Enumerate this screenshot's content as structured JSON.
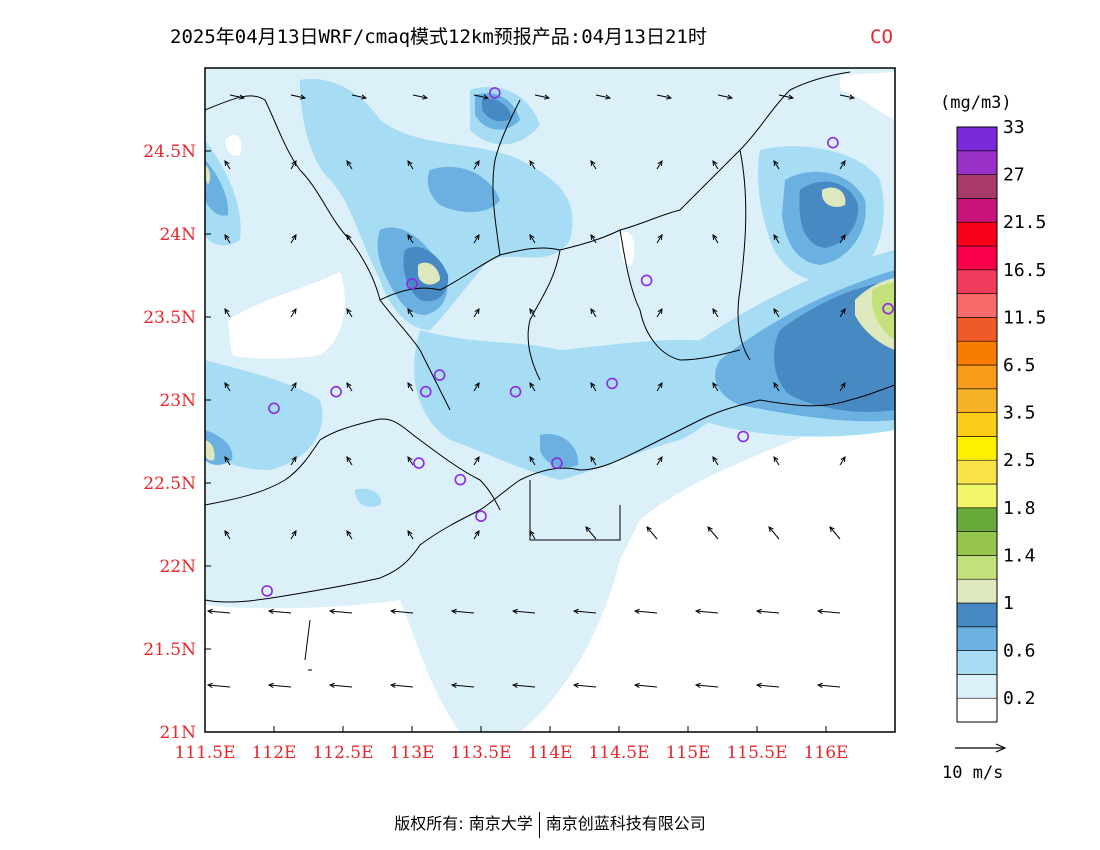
{
  "title": {
    "main": "2025年04月13日WRF/cmaq模式12km预报产品:04月13日21时",
    "variable": "CO"
  },
  "colors": {
    "tick_label": "#e8262b",
    "frame": "#000000",
    "land_outline": "#000000",
    "station_marker": "#8b2be2"
  },
  "axes": {
    "x_ticks": [
      "111.5E",
      "112E",
      "112.5E",
      "113E",
      "113.5E",
      "114E",
      "114.5E",
      "115E",
      "115.5E",
      "116E"
    ],
    "y_ticks": [
      "24.5N",
      "24N",
      "23.5N",
      "23N",
      "22.5N",
      "22N",
      "21.5N",
      "21N"
    ]
  },
  "colorbar": {
    "unit": "(mg/m3)",
    "colors": [
      "#ffffff",
      "#dcf0fa",
      "#a6dcf4",
      "#6ab0e0",
      "#4789c3",
      "#dde9bc",
      "#c3e07a",
      "#93c64a",
      "#6aaa3a",
      "#f0f56a",
      "#f8e24a",
      "#fff000",
      "#fbcd18",
      "#f8b22a",
      "#f89b1a",
      "#f87c00",
      "#f05a28",
      "#f86a6a",
      "#f03c5a",
      "#f8004a",
      "#f8001a",
      "#c8147a",
      "#a83a6a",
      "#9a30c8",
      "#7a2ad8"
    ],
    "labels": [
      "0.2",
      "0.6",
      "1",
      "1.4",
      "1.8",
      "2.5",
      "3.5",
      "6.5",
      "11.5",
      "16.5",
      "21.5",
      "27",
      "33"
    ]
  },
  "wind_legend": {
    "label": "10 m/s"
  },
  "chart_data": {
    "type": "heatmap",
    "title": "2025年04月13日WRF/cmaq模式12km预报产品:04月13日21时 CO",
    "xlabel": "",
    "ylabel": "",
    "xlim": [
      111.5,
      116.5
    ],
    "ylim": [
      21,
      25
    ],
    "x_ticks": [
      111.5,
      112,
      112.5,
      113,
      113.5,
      114,
      114.5,
      115,
      115.5,
      116
    ],
    "y_ticks": [
      21,
      21.5,
      22,
      22.5,
      23,
      23.5,
      24,
      24.5
    ],
    "levels_mg_m3": [
      0.2,
      0.6,
      1,
      1.4,
      1.8,
      2.5,
      3.5,
      6.5,
      11.5,
      16.5,
      21.5,
      27,
      33
    ],
    "notes_hotspots": [
      {
        "lon": 113.1,
        "lat": 23.75,
        "level": "1-1.4"
      },
      {
        "lon": 116.0,
        "lat": 24.15,
        "level": "1-1.4"
      },
      {
        "lon": 116.5,
        "lat": 23.5,
        "level": "1.4-1.8"
      },
      {
        "lon": 111.5,
        "lat": 22.7,
        "level": "1-1.4"
      },
      {
        "lon": 111.5,
        "lat": 24.35,
        "level": "1-1.4"
      }
    ],
    "stations": [
      {
        "lon": 113.6,
        "lat": 24.85
      },
      {
        "lon": 116.05,
        "lat": 24.55
      },
      {
        "lon": 113.0,
        "lat": 23.7
      },
      {
        "lon": 114.7,
        "lat": 23.72
      },
      {
        "lon": 116.45,
        "lat": 23.55
      },
      {
        "lon": 112.45,
        "lat": 23.05
      },
      {
        "lon": 112.0,
        "lat": 22.95
      },
      {
        "lon": 113.1,
        "lat": 23.05
      },
      {
        "lon": 113.2,
        "lat": 23.15
      },
      {
        "lon": 113.75,
        "lat": 23.05
      },
      {
        "lon": 114.45,
        "lat": 23.1
      },
      {
        "lon": 115.4,
        "lat": 22.78
      },
      {
        "lon": 113.05,
        "lat": 22.62
      },
      {
        "lon": 113.35,
        "lat": 22.52
      },
      {
        "lon": 113.5,
        "lat": 22.3
      },
      {
        "lon": 114.05,
        "lat": 22.62
      },
      {
        "lon": 111.95,
        "lat": 21.85
      }
    ]
  }
}
